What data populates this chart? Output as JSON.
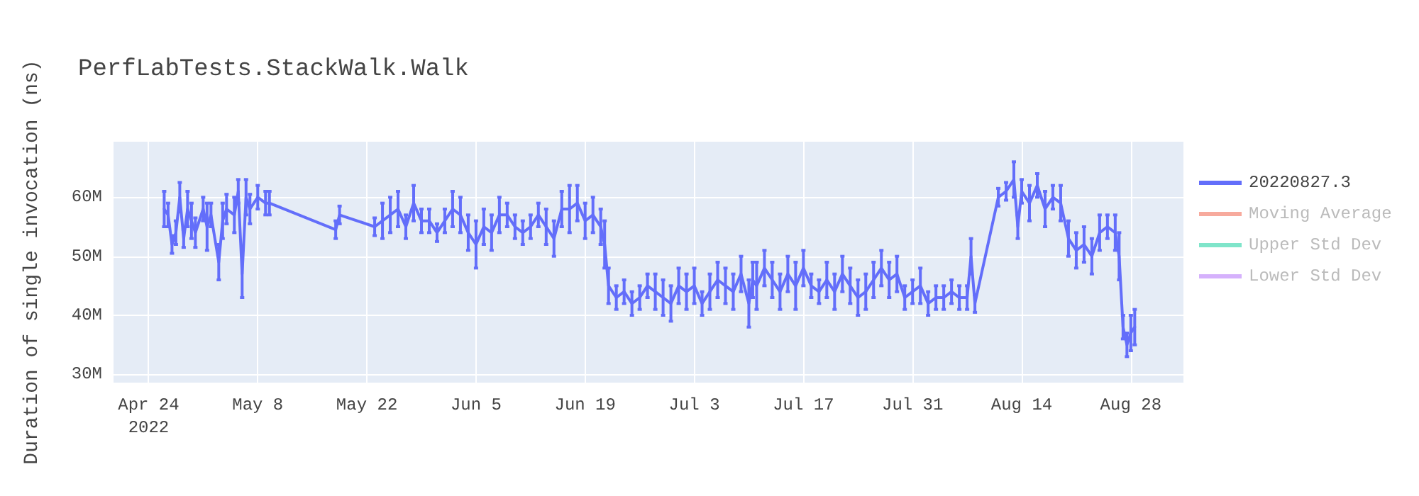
{
  "chart_data": {
    "type": "line",
    "title": "PerfLabTests.StackWalk.Walk",
    "ylabel": "Duration of single invocation (ns)",
    "xlim": [
      "2022-04-19T12:00",
      "2022-09-03T18:00"
    ],
    "xticks": [
      {
        "value": "2022-04-24",
        "label": "Apr 24\n2022"
      },
      {
        "value": "2022-05-08",
        "label": "May 8"
      },
      {
        "value": "2022-05-22",
        "label": "May 22"
      },
      {
        "value": "2022-06-05",
        "label": "Jun 5"
      },
      {
        "value": "2022-06-19",
        "label": "Jun 19"
      },
      {
        "value": "2022-07-03",
        "label": "Jul 3"
      },
      {
        "value": "2022-07-17",
        "label": "Jul 17"
      },
      {
        "value": "2022-07-31",
        "label": "Jul 31"
      },
      {
        "value": "2022-08-14",
        "label": "Aug 14"
      },
      {
        "value": "2022-08-28",
        "label": "Aug 28"
      }
    ],
    "ylim": [
      28600000,
      69400000
    ],
    "yticks": [
      {
        "value": 30000000,
        "label": "30M"
      },
      {
        "value": 40000000,
        "label": "40M"
      },
      {
        "value": 50000000,
        "label": "50M"
      },
      {
        "value": 60000000,
        "label": "60M"
      }
    ],
    "grid": true,
    "legend": "right",
    "marker": "none",
    "line_style": "solid",
    "series": [
      {
        "name": "20220827.3",
        "color": "#636efa",
        "x": [
          "2022-04-26",
          "2022-04-26T12:00",
          "2022-04-27",
          "2022-04-27T12:00",
          "2022-04-28",
          "2022-04-28T12:00",
          "2022-04-29",
          "2022-04-29T12:00",
          "2022-04-30",
          "2022-05-01",
          "2022-05-01T12:00",
          "2022-05-02",
          "2022-05-03",
          "2022-05-03T12:00",
          "2022-05-04",
          "2022-05-05",
          "2022-05-05T12:00",
          "2022-05-06",
          "2022-05-06T12:00",
          "2022-05-07",
          "2022-05-08",
          "2022-05-09",
          "2022-05-09T12:00",
          "2022-05-18",
          "2022-05-18T12:00",
          "2022-05-23",
          "2022-05-24",
          "2022-05-25",
          "2022-05-26",
          "2022-05-27",
          "2022-05-28",
          "2022-05-29",
          "2022-05-30",
          "2022-05-31",
          "2022-06-01",
          "2022-06-02",
          "2022-06-03",
          "2022-06-04",
          "2022-06-05",
          "2022-06-06",
          "2022-06-07",
          "2022-06-08",
          "2022-06-09",
          "2022-06-10",
          "2022-06-11",
          "2022-06-12",
          "2022-06-13",
          "2022-06-14",
          "2022-06-15",
          "2022-06-16",
          "2022-06-17",
          "2022-06-18",
          "2022-06-19",
          "2022-06-20",
          "2022-06-21",
          "2022-06-21T12:00",
          "2022-06-22",
          "2022-06-23",
          "2022-06-24",
          "2022-06-25",
          "2022-06-26",
          "2022-06-27",
          "2022-06-28",
          "2022-06-29",
          "2022-06-30",
          "2022-07-01",
          "2022-07-02",
          "2022-07-03",
          "2022-07-04",
          "2022-07-05",
          "2022-07-06",
          "2022-07-07",
          "2022-07-08",
          "2022-07-09",
          "2022-07-10",
          "2022-07-10T12:00",
          "2022-07-11",
          "2022-07-12",
          "2022-07-13",
          "2022-07-14",
          "2022-07-15",
          "2022-07-16",
          "2022-07-17",
          "2022-07-18",
          "2022-07-19",
          "2022-07-20",
          "2022-07-21",
          "2022-07-22",
          "2022-07-23",
          "2022-07-24",
          "2022-07-25",
          "2022-07-26",
          "2022-07-27",
          "2022-07-28",
          "2022-07-29",
          "2022-07-30",
          "2022-07-31",
          "2022-08-01",
          "2022-08-02",
          "2022-08-03",
          "2022-08-04",
          "2022-08-05",
          "2022-08-06",
          "2022-08-07",
          "2022-08-07T12:00",
          "2022-08-08",
          "2022-08-11",
          "2022-08-12",
          "2022-08-13",
          "2022-08-13T12:00",
          "2022-08-14",
          "2022-08-15",
          "2022-08-16",
          "2022-08-17",
          "2022-08-18",
          "2022-08-19",
          "2022-08-20",
          "2022-08-21",
          "2022-08-22",
          "2022-08-23",
          "2022-08-24",
          "2022-08-25",
          "2022-08-26",
          "2022-08-26T12:00",
          "2022-08-27",
          "2022-08-27T12:00",
          "2022-08-28",
          "2022-08-28T12:00"
        ],
        "values": [
          58000000,
          57000000,
          52000000,
          54000000,
          60000000,
          53000000,
          58000000,
          56000000,
          54000000,
          58000000,
          55000000,
          57000000,
          49000000,
          56000000,
          58000000,
          57000000,
          61000000,
          47000000,
          60000000,
          58000000,
          60000000,
          59000000,
          59000000,
          54500000,
          57000000,
          55000000,
          56000000,
          57000000,
          58000000,
          55000000,
          59000000,
          56000000,
          56000000,
          54000000,
          56000000,
          58000000,
          57000000,
          54000000,
          52000000,
          55000000,
          54000000,
          57000000,
          57000000,
          55000000,
          54000000,
          55000000,
          57000000,
          55000000,
          53000000,
          58000000,
          58000000,
          59000000,
          56000000,
          57000000,
          55000000,
          52000000,
          45000000,
          43000000,
          44000000,
          42000000,
          43000000,
          45000000,
          44000000,
          43000000,
          42000000,
          45000000,
          44000000,
          45000000,
          42000000,
          44000000,
          46000000,
          45000000,
          44000000,
          47000000,
          42000000,
          46000000,
          45000000,
          48000000,
          46000000,
          44000000,
          47000000,
          45000000,
          48000000,
          45000000,
          44000000,
          46000000,
          44000000,
          47000000,
          45000000,
          43000000,
          44000000,
          46000000,
          48000000,
          46000000,
          47000000,
          43000000,
          44000000,
          45000000,
          42000000,
          43000000,
          43000000,
          44000000,
          43000000,
          43000000,
          50000000,
          42000000,
          60000000,
          61000000,
          63000000,
          55000000,
          61000000,
          59000000,
          62000000,
          58000000,
          60000000,
          59000000,
          53000000,
          51000000,
          52000000,
          50000000,
          54000000,
          55000000,
          54000000,
          50000000,
          38000000,
          35000000,
          37000000,
          38000000
        ],
        "errors": [
          3000000,
          2000000,
          1500000,
          2000000,
          2500000,
          1500000,
          3000000,
          3000000,
          2500000,
          2000000,
          4000000,
          2000000,
          3000000,
          3000000,
          2500000,
          3000000,
          2000000,
          4000000,
          3000000,
          2500000,
          2000000,
          2000000,
          2000000,
          1500000,
          1500000,
          1500000,
          3000000,
          3000000,
          3000000,
          2000000,
          3000000,
          2000000,
          2000000,
          1500000,
          2000000,
          3000000,
          3000000,
          3000000,
          4000000,
          3000000,
          3000000,
          3000000,
          2000000,
          2000000,
          2000000,
          2000000,
          2000000,
          3000000,
          3000000,
          3000000,
          4000000,
          3000000,
          3000000,
          3000000,
          3000000,
          4000000,
          3000000,
          2000000,
          2000000,
          2000000,
          2000000,
          2000000,
          3000000,
          3000000,
          3000000,
          3000000,
          3000000,
          3000000,
          2000000,
          3000000,
          3000000,
          3000000,
          3000000,
          3000000,
          4000000,
          3000000,
          4000000,
          3000000,
          3000000,
          3000000,
          3000000,
          4000000,
          3000000,
          2000000,
          2000000,
          3000000,
          3000000,
          3000000,
          3000000,
          3000000,
          3000000,
          3000000,
          3000000,
          3000000,
          3000000,
          2000000,
          2000000,
          3000000,
          2000000,
          2000000,
          2000000,
          2000000,
          2000000,
          2000000,
          3000000,
          1500000,
          1500000,
          1500000,
          3000000,
          2000000,
          2000000,
          3000000,
          2000000,
          3000000,
          2000000,
          3000000,
          3000000,
          3000000,
          3000000,
          3000000,
          3000000,
          2000000,
          3000000,
          4000000,
          2000000,
          2000000,
          3000000,
          3000000
        ]
      },
      {
        "name": "Moving Average",
        "color": "#ef553b"
      },
      {
        "name": "Upper Std Dev",
        "color": "#00cc96"
      },
      {
        "name": "Lower Std Dev",
        "color": "#ab63fa"
      }
    ]
  }
}
